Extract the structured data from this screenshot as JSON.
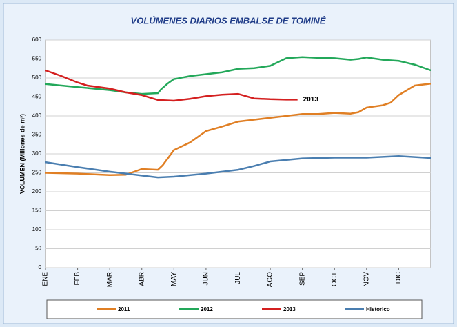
{
  "chart_data": {
    "type": "line",
    "title": "VOLÚMENES DIARIOS EMBALSE DE TOMINÉ",
    "y_label": "VOLUMEN (Millones de m³)",
    "annotation": "2013",
    "xlim": [
      0,
      12
    ],
    "xticks": [
      {
        "value": 0,
        "label": "ENE"
      },
      {
        "value": 1,
        "label": "FEB"
      },
      {
        "value": 2,
        "label": "MAR"
      },
      {
        "value": 3,
        "label": "ABR"
      },
      {
        "value": 4,
        "label": "MAY"
      },
      {
        "value": 5,
        "label": "JUN"
      },
      {
        "value": 6,
        "label": "JUL"
      },
      {
        "value": 7,
        "label": "AGO"
      },
      {
        "value": 8,
        "label": "SEP"
      },
      {
        "value": 9,
        "label": "OCT"
      },
      {
        "value": 10,
        "label": "NOV"
      },
      {
        "value": 11,
        "label": "DIC"
      }
    ],
    "ylim": [
      0,
      600
    ],
    "yticks": [
      0,
      50,
      100,
      150,
      200,
      250,
      300,
      350,
      400,
      450,
      500,
      550,
      600
    ],
    "grid": true,
    "series": [
      {
        "name": "2011",
        "color": "#e07f24",
        "x": [
          0,
          1,
          2,
          2.5,
          3,
          3.5,
          3.65,
          4,
          4.5,
          5,
          5.5,
          6,
          6.5,
          7,
          7.5,
          8,
          8.5,
          9,
          9.5,
          9.75,
          10,
          10.5,
          10.75,
          11,
          11.5,
          12
        ],
        "values": [
          250,
          248,
          244,
          245,
          260,
          258,
          270,
          310,
          330,
          360,
          372,
          385,
          390,
          395,
          400,
          405,
          405,
          408,
          406,
          410,
          422,
          428,
          435,
          455,
          480,
          485
        ]
      },
      {
        "name": "2012",
        "color": "#23a85a",
        "x": [
          0,
          1,
          2,
          2.5,
          3,
          3.5,
          3.6,
          3.8,
          4,
          4.5,
          5,
          5.5,
          6,
          6.5,
          7,
          7.5,
          8,
          8.5,
          9,
          9.5,
          9.75,
          10,
          10.5,
          11,
          11.5,
          12
        ],
        "values": [
          484,
          476,
          468,
          462,
          458,
          460,
          470,
          485,
          497,
          505,
          510,
          515,
          524,
          526,
          532,
          552,
          555,
          553,
          552,
          548,
          550,
          554,
          548,
          545,
          535,
          520
        ]
      },
      {
        "name": "2013",
        "color": "#d42020",
        "x": [
          0,
          0.5,
          1,
          1.3,
          2,
          2.5,
          3,
          3.5,
          4,
          4.5,
          5,
          5.5,
          6,
          6.5,
          7,
          7.5,
          7.85
        ],
        "values": [
          520,
          505,
          488,
          480,
          472,
          462,
          455,
          442,
          440,
          445,
          452,
          456,
          458,
          446,
          444,
          443,
          443
        ]
      },
      {
        "name": "Historico",
        "color": "#4a7eb0",
        "x": [
          0,
          1,
          2,
          3,
          3.5,
          4,
          5,
          6,
          6.5,
          7,
          8,
          9,
          10,
          11,
          12
        ],
        "values": [
          278,
          265,
          253,
          243,
          238,
          240,
          248,
          258,
          268,
          280,
          288,
          290,
          290,
          294,
          289
        ]
      }
    ]
  }
}
